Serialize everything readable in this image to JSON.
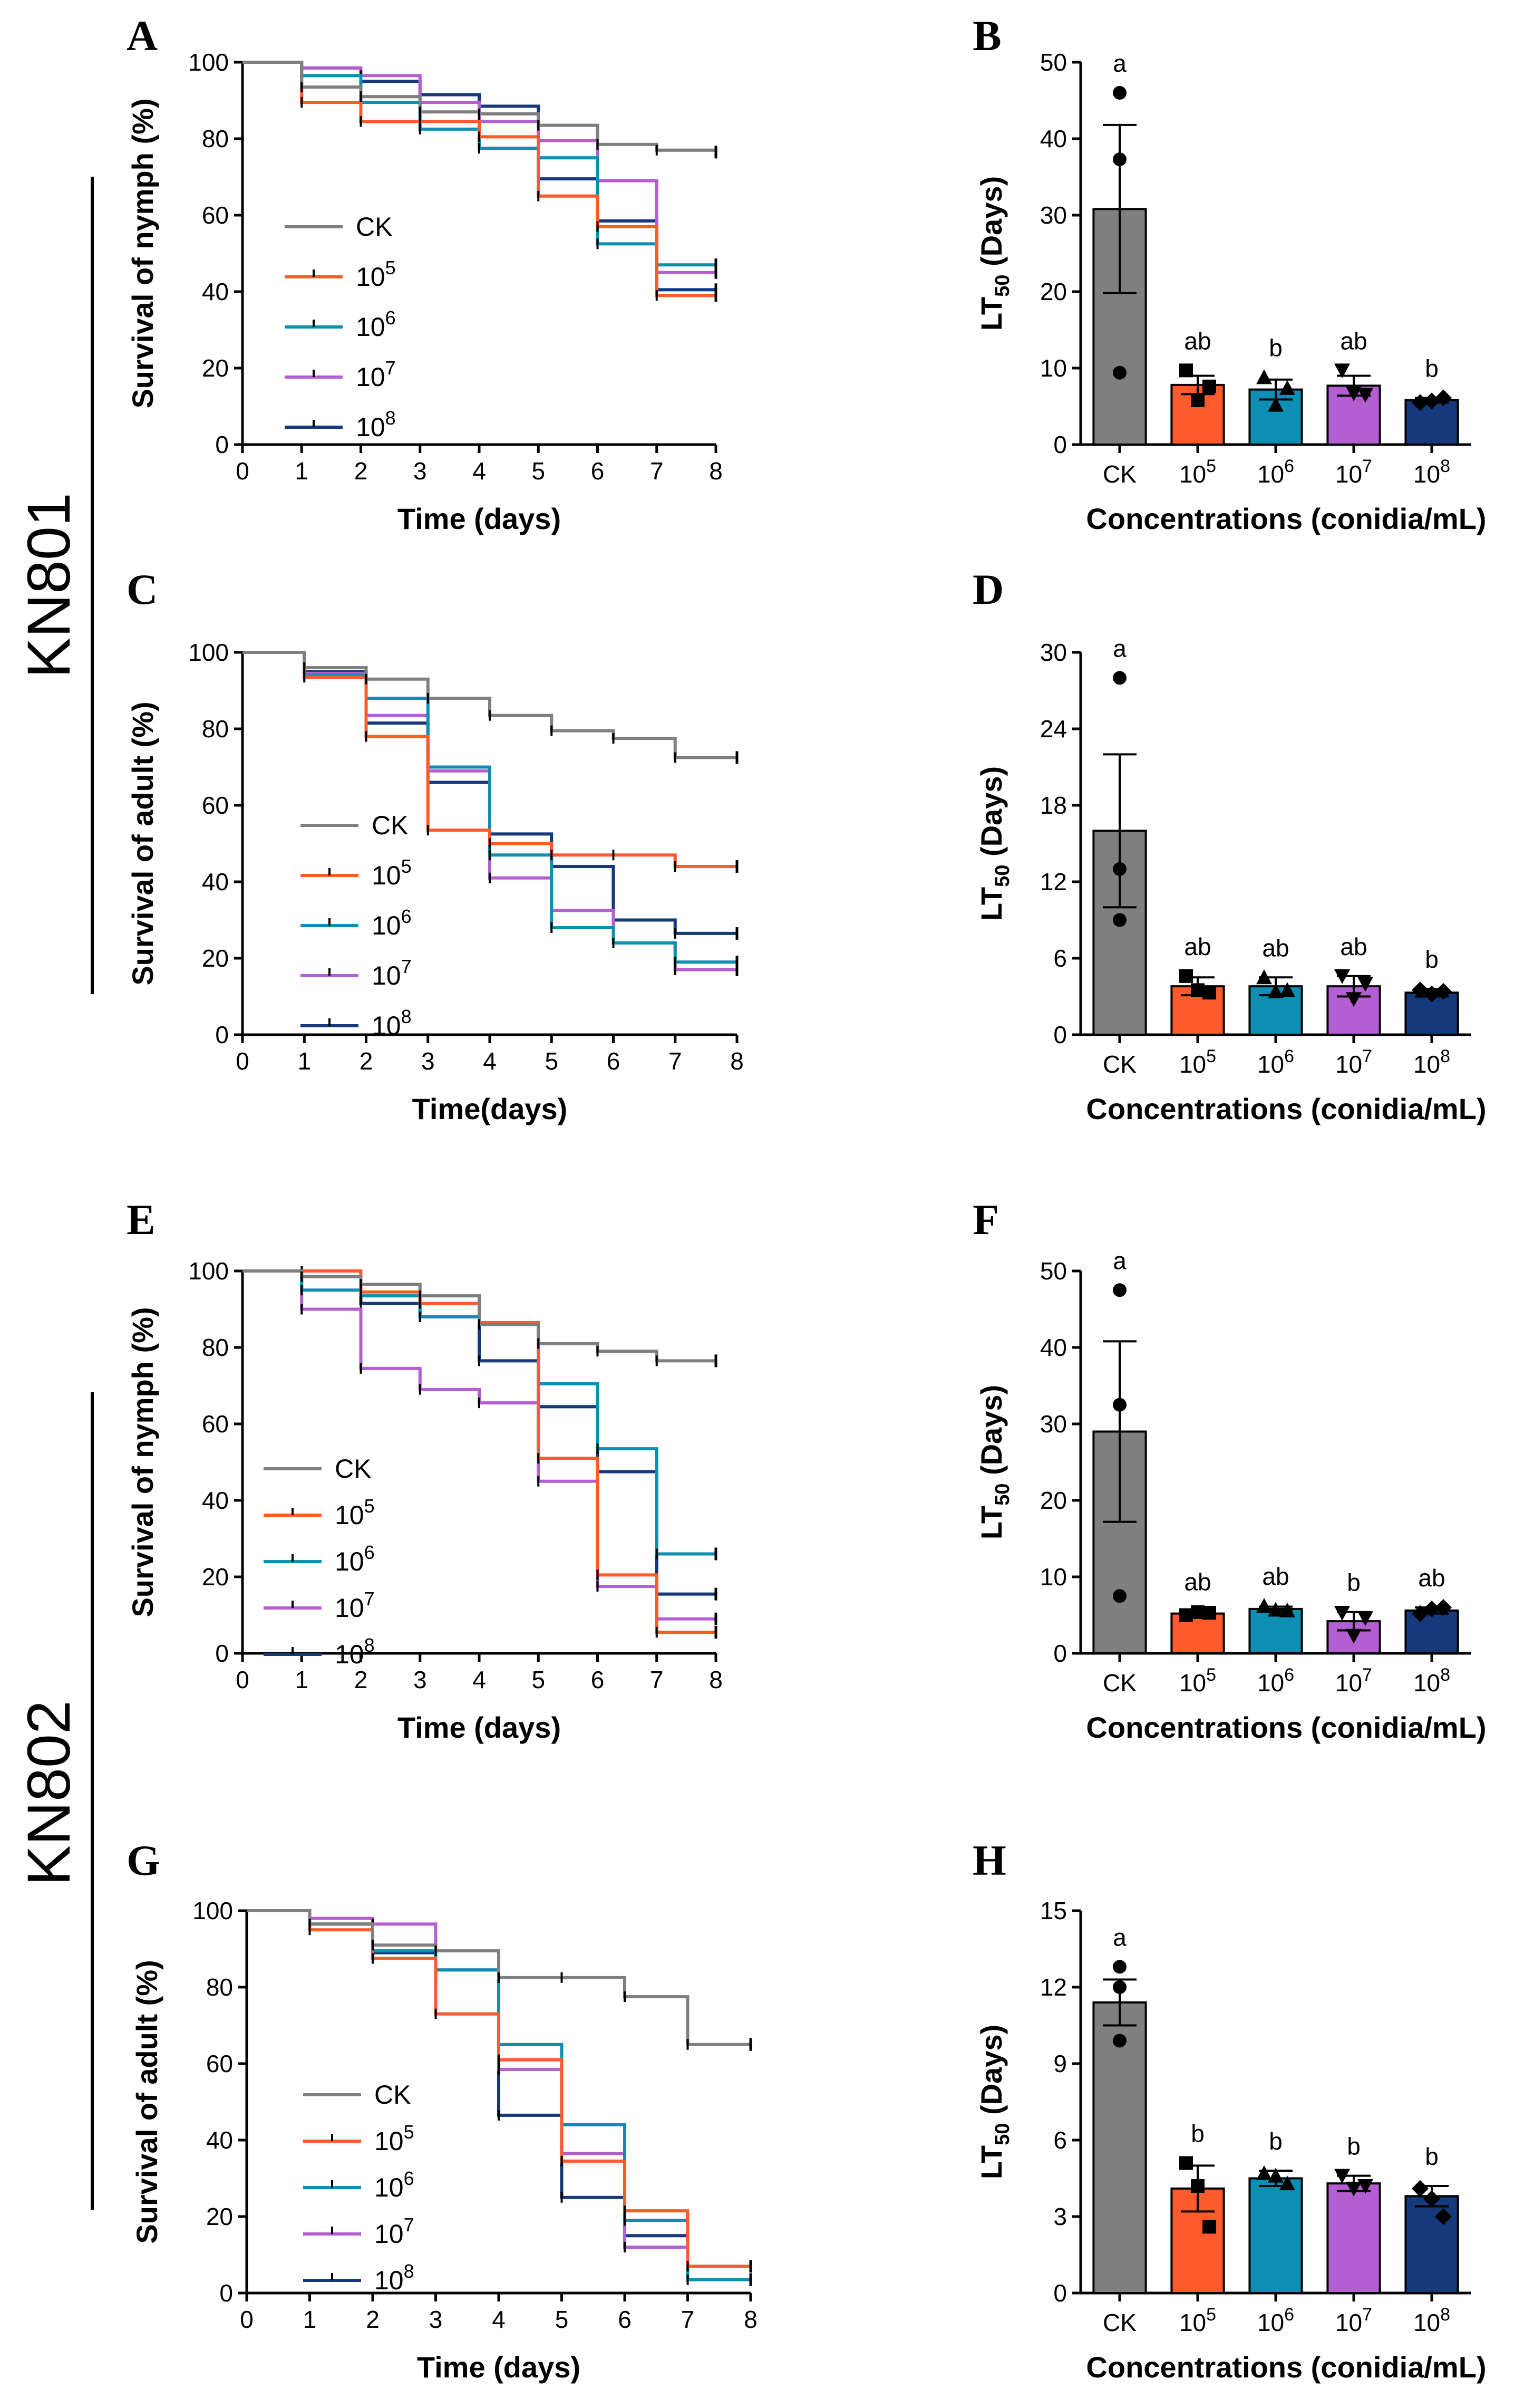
{
  "colors": {
    "CK": "#7f7f7f",
    "1e5": "#ff5a2b",
    "1e6": "#0d8fb3",
    "1e7": "#b35fd1",
    "1e8": "#15397a",
    "barCK": "#7f7f7f",
    "bar1e5": "#ff5a2b",
    "bar1e6": "#0d8fb3",
    "bar1e7": "#b35fd1",
    "bar1e8": "#15397a"
  },
  "strains": [
    "KN801",
    "KN802"
  ],
  "chart_data": [
    {
      "id": "A",
      "type": "line",
      "step": true,
      "title": "",
      "xlabel": "Time (days)",
      "ylabel": "Survival of nymph (%)",
      "xlim": [
        0,
        8
      ],
      "ylim": [
        0,
        100
      ],
      "xticks": [
        "0",
        "1",
        "2",
        "3",
        "4",
        "5",
        "6",
        "7",
        "8"
      ],
      "yticks": [
        "0",
        "20",
        "40",
        "60",
        "80",
        "100"
      ],
      "legend": [
        "CK",
        "10",
        "10",
        "10",
        "10"
      ],
      "legend_exponents": [
        "",
        "5",
        "6",
        "7",
        "8"
      ],
      "legend_position": "left-middle",
      "series": [
        {
          "name": "CK",
          "values": [
            100,
            93.5,
            91,
            87,
            86.5,
            83.5,
            78.5,
            77,
            76.5
          ]
        },
        {
          "name": "10^5",
          "values": [
            100,
            89.5,
            84.5,
            84.5,
            80.5,
            65,
            57,
            39,
            39
          ]
        },
        {
          "name": "10^6",
          "values": [
            100,
            96.5,
            89.5,
            82.5,
            77.5,
            75,
            52.5,
            47,
            47
          ]
        },
        {
          "name": "10^7",
          "values": [
            100,
            98.5,
            96.5,
            89.5,
            84.5,
            79.5,
            69,
            45,
            45
          ]
        },
        {
          "name": "10^8",
          "values": [
            100,
            98.5,
            95,
            91.5,
            88.5,
            69.5,
            58.5,
            40.5,
            40.5
          ]
        }
      ]
    },
    {
      "id": "B",
      "type": "bar",
      "title": "",
      "xlabel": "Concentrations (conidia/mL)",
      "ylabel": "LT",
      "ylabel_sub": "50",
      "ylabel_suffix": " (Days)",
      "categories": [
        "CK",
        "10",
        "10",
        "10",
        "10"
      ],
      "category_exponents": [
        "",
        "5",
        "6",
        "7",
        "8"
      ],
      "ylim": [
        0,
        50
      ],
      "yticks": [
        "0",
        "10",
        "20",
        "30",
        "40",
        "50"
      ],
      "values": [
        30.8,
        7.8,
        7.2,
        7.7,
        5.8
      ],
      "errors": [
        11,
        1.2,
        1.3,
        1.3,
        0.3
      ],
      "significance": [
        "a",
        "ab",
        "b",
        "ab",
        "b"
      ],
      "points": [
        [
          46,
          37.3,
          9.4
        ],
        [
          9.7,
          5.8,
          7.6
        ],
        [
          8.8,
          5.2,
          7.4
        ],
        [
          9.7,
          6.7,
          6.5
        ],
        [
          5.5,
          5.7,
          6.1
        ]
      ],
      "markers": [
        "circle",
        "square",
        "triangle",
        "triangle-down",
        "diamond"
      ]
    },
    {
      "id": "C",
      "type": "line",
      "step": true,
      "title": "",
      "xlabel": "Time(days)",
      "ylabel": "Survival of adult (%)",
      "xlim": [
        0,
        8
      ],
      "ylim": [
        0,
        100
      ],
      "xticks": [
        "0",
        "1",
        "2",
        "3",
        "4",
        "5",
        "6",
        "7",
        "8"
      ],
      "yticks": [
        "0",
        "20",
        "40",
        "60",
        "80",
        "100"
      ],
      "legend": [
        "CK",
        "10",
        "10",
        "10",
        "10"
      ],
      "legend_exponents": [
        "",
        "5",
        "6",
        "7",
        "8"
      ],
      "legend_position": "left-middle",
      "series": [
        {
          "name": "CK",
          "values": [
            100,
            96,
            93,
            88,
            83.5,
            79.5,
            77.5,
            72.5,
            72.5
          ]
        },
        {
          "name": "10^5",
          "values": [
            100,
            93.5,
            78,
            53.5,
            50,
            47,
            47,
            44,
            44
          ]
        },
        {
          "name": "10^6",
          "values": [
            100,
            94,
            88,
            70,
            47,
            28,
            24,
            19,
            19
          ]
        },
        {
          "name": "10^7",
          "values": [
            100,
            94.5,
            83.5,
            69,
            41,
            32.5,
            24,
            17,
            17
          ]
        },
        {
          "name": "10^8",
          "values": [
            100,
            95,
            81.5,
            66,
            52.5,
            44,
            30,
            26.5,
            26.5
          ]
        }
      ]
    },
    {
      "id": "D",
      "type": "bar",
      "title": "",
      "xlabel": "Concentrations (conidia/mL)",
      "ylabel": "LT",
      "ylabel_sub": "50",
      "ylabel_suffix": " (Days)",
      "categories": [
        "CK",
        "10",
        "10",
        "10",
        "10"
      ],
      "category_exponents": [
        "",
        "5",
        "6",
        "7",
        "8"
      ],
      "ylim": [
        0,
        30
      ],
      "yticks": [
        "0",
        "6",
        "12",
        "18",
        "24",
        "30"
      ],
      "values": [
        16,
        3.8,
        3.8,
        3.8,
        3.3
      ],
      "errors": [
        6,
        0.7,
        0.7,
        0.8,
        0.3
      ],
      "significance": [
        "a",
        "ab",
        "ab",
        "ab",
        "b"
      ],
      "points": [
        [
          28,
          13,
          9
        ],
        [
          4.6,
          3.5,
          3.3
        ],
        [
          4.5,
          3.4,
          3.5
        ],
        [
          4.6,
          2.8,
          4
        ],
        [
          3.5,
          3.2,
          3.4
        ]
      ],
      "markers": [
        "circle",
        "square",
        "triangle",
        "triangle-down",
        "diamond"
      ]
    },
    {
      "id": "E",
      "type": "line",
      "step": true,
      "title": "",
      "xlabel": "Time (days)",
      "ylabel": "Survival of nymph (%)",
      "xlim": [
        0,
        8
      ],
      "ylim": [
        0,
        100
      ],
      "xticks": [
        "0",
        "1",
        "2",
        "3",
        "4",
        "5",
        "6",
        "7",
        "8"
      ],
      "yticks": [
        "0",
        "20",
        "40",
        "60",
        "80",
        "100"
      ],
      "legend": [
        "CK",
        "10",
        "10",
        "10",
        "10"
      ],
      "legend_exponents": [
        "",
        "5",
        "6",
        "7",
        "8"
      ],
      "legend_position": "left-lower",
      "series": [
        {
          "name": "CK",
          "values": [
            100,
            98.5,
            96.5,
            93.5,
            86,
            81,
            79,
            76.5,
            76.5
          ]
        },
        {
          "name": "10^5",
          "values": [
            100,
            100,
            94.5,
            91.5,
            86.5,
            51,
            20.5,
            5.5,
            5.5
          ]
        },
        {
          "name": "10^6",
          "values": [
            100,
            95,
            93.5,
            88,
            86,
            70.5,
            53.5,
            26,
            26
          ]
        },
        {
          "name": "10^7",
          "values": [
            100,
            90,
            74.5,
            69,
            65.5,
            45,
            17.5,
            9,
            9
          ]
        },
        {
          "name": "10^8",
          "values": [
            100,
            98.5,
            91.5,
            88,
            76.5,
            64.5,
            47.5,
            15.5,
            15.5
          ]
        }
      ]
    },
    {
      "id": "F",
      "type": "bar",
      "title": "",
      "xlabel": "Concentrations (conidia/mL)",
      "ylabel": "LT",
      "ylabel_sub": "50",
      "ylabel_suffix": " (Days)",
      "categories": [
        "CK",
        "10",
        "10",
        "10",
        "10"
      ],
      "category_exponents": [
        "",
        "5",
        "6",
        "7",
        "8"
      ],
      "ylim": [
        0,
        50
      ],
      "yticks": [
        "0",
        "10",
        "20",
        "30",
        "40",
        "50"
      ],
      "values": [
        29,
        5.2,
        5.8,
        4.2,
        5.6
      ],
      "errors": [
        11.8,
        0.3,
        0.3,
        1.2,
        0.4
      ],
      "significance": [
        "a",
        "ab",
        "ab",
        "b",
        "ab"
      ],
      "points": [
        [
          47.5,
          32.5,
          7.5
        ],
        [
          5,
          5.4,
          5.3
        ],
        [
          6.2,
          5.7,
          5.6
        ],
        [
          5.3,
          2.3,
          4.6
        ],
        [
          5.2,
          5.8,
          6
        ]
      ],
      "markers": [
        "circle",
        "square",
        "triangle",
        "triangle-down",
        "diamond"
      ]
    },
    {
      "id": "G",
      "type": "line",
      "step": true,
      "title": "",
      "xlabel": "Time (days)",
      "ylabel": "Survival of adult (%)",
      "xlim": [
        0,
        8
      ],
      "ylim": [
        0,
        100
      ],
      "xticks": [
        "0",
        "1",
        "2",
        "3",
        "4",
        "5",
        "6",
        "7",
        "8"
      ],
      "yticks": [
        "0",
        "20",
        "40",
        "60",
        "80",
        "100"
      ],
      "legend": [
        "CK",
        "10",
        "10",
        "10",
        "10"
      ],
      "legend_exponents": [
        "",
        "5",
        "6",
        "7",
        "8"
      ],
      "legend_position": "left-lower",
      "series": [
        {
          "name": "CK",
          "values": [
            100,
            96.5,
            91,
            89.5,
            82.5,
            82.5,
            77.5,
            65,
            65
          ]
        },
        {
          "name": "10^5",
          "values": [
            100,
            95,
            87.5,
            73,
            61,
            34.5,
            21.5,
            7,
            7
          ]
        },
        {
          "name": "10^6",
          "values": [
            100,
            96.5,
            89.5,
            84.5,
            65,
            44,
            19,
            3.5,
            3.5
          ]
        },
        {
          "name": "10^7",
          "values": [
            100,
            98,
            96.5,
            84.5,
            58.5,
            36.5,
            12,
            3.5,
            3.5
          ]
        },
        {
          "name": "10^8",
          "values": [
            100,
            96.5,
            89,
            84.5,
            46.5,
            25,
            15,
            3.5,
            3.5
          ]
        }
      ]
    },
    {
      "id": "H",
      "type": "bar",
      "title": "",
      "xlabel": "Concentrations (conidia/mL)",
      "ylabel": "LT",
      "ylabel_sub": "50",
      "ylabel_suffix": " (Days)",
      "categories": [
        "CK",
        "10",
        "10",
        "10",
        "10"
      ],
      "category_exponents": [
        "",
        "5",
        "6",
        "7",
        "8"
      ],
      "ylim": [
        0,
        15
      ],
      "yticks": [
        "0",
        "3",
        "6",
        "9",
        "12",
        "15"
      ],
      "values": [
        11.4,
        4.1,
        4.5,
        4.3,
        3.8
      ],
      "errors": [
        0.9,
        0.9,
        0.3,
        0.3,
        0.4
      ],
      "significance": [
        "a",
        "b",
        "b",
        "b",
        "b"
      ],
      "points": [
        [
          12.8,
          12,
          9.9
        ],
        [
          5.1,
          4.2,
          2.6
        ],
        [
          4.7,
          4.6,
          4.3
        ],
        [
          4.6,
          4.1,
          4.2
        ],
        [
          4.1,
          3.7,
          3
        ]
      ],
      "markers": [
        "circle",
        "square",
        "triangle",
        "triangle-down",
        "diamond"
      ]
    }
  ]
}
